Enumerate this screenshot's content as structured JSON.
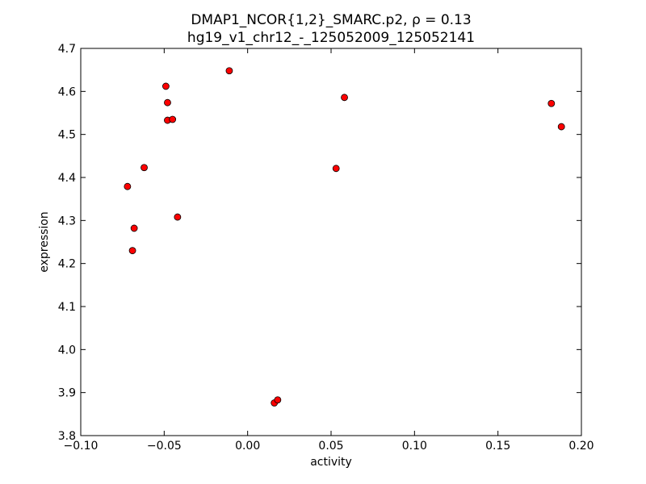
{
  "chart_data": {
    "type": "scatter",
    "title": "DMAP1_NCOR{1,2}_SMARC.p2, ρ = 0.13",
    "subtitle": "hg19_v1_chr12_-_125052009_125052141",
    "xlabel": "activity",
    "ylabel": "expression",
    "xlim": [
      -0.1,
      0.2
    ],
    "ylim": [
      3.8,
      4.7
    ],
    "xticks": [
      -0.1,
      -0.05,
      0.0,
      0.05,
      0.1,
      0.15,
      0.2
    ],
    "xtick_labels": [
      "−0.10",
      "−0.05",
      "0.00",
      "0.05",
      "0.10",
      "0.15",
      "0.20"
    ],
    "yticks": [
      3.8,
      3.9,
      4.0,
      4.1,
      4.2,
      4.3,
      4.4,
      4.5,
      4.6,
      4.7
    ],
    "ytick_labels": [
      "3.8",
      "3.9",
      "4.0",
      "4.1",
      "4.2",
      "4.3",
      "4.4",
      "4.5",
      "4.6",
      "4.7"
    ],
    "grid": false,
    "marker_color": "#ff0000",
    "marker_edge_color": "#000000",
    "points": [
      {
        "x": -0.011,
        "y": 4.648
      },
      {
        "x": -0.049,
        "y": 4.612
      },
      {
        "x": -0.048,
        "y": 4.574
      },
      {
        "x": -0.048,
        "y": 4.533
      },
      {
        "x": -0.045,
        "y": 4.535
      },
      {
        "x": -0.062,
        "y": 4.423
      },
      {
        "x": -0.072,
        "y": 4.379
      },
      {
        "x": -0.042,
        "y": 4.308
      },
      {
        "x": -0.068,
        "y": 4.282
      },
      {
        "x": -0.069,
        "y": 4.23
      },
      {
        "x": 0.058,
        "y": 4.586
      },
      {
        "x": 0.053,
        "y": 4.421
      },
      {
        "x": 0.016,
        "y": 3.876
      },
      {
        "x": 0.018,
        "y": 3.883
      },
      {
        "x": 0.182,
        "y": 4.572
      },
      {
        "x": 0.188,
        "y": 4.518
      }
    ]
  }
}
